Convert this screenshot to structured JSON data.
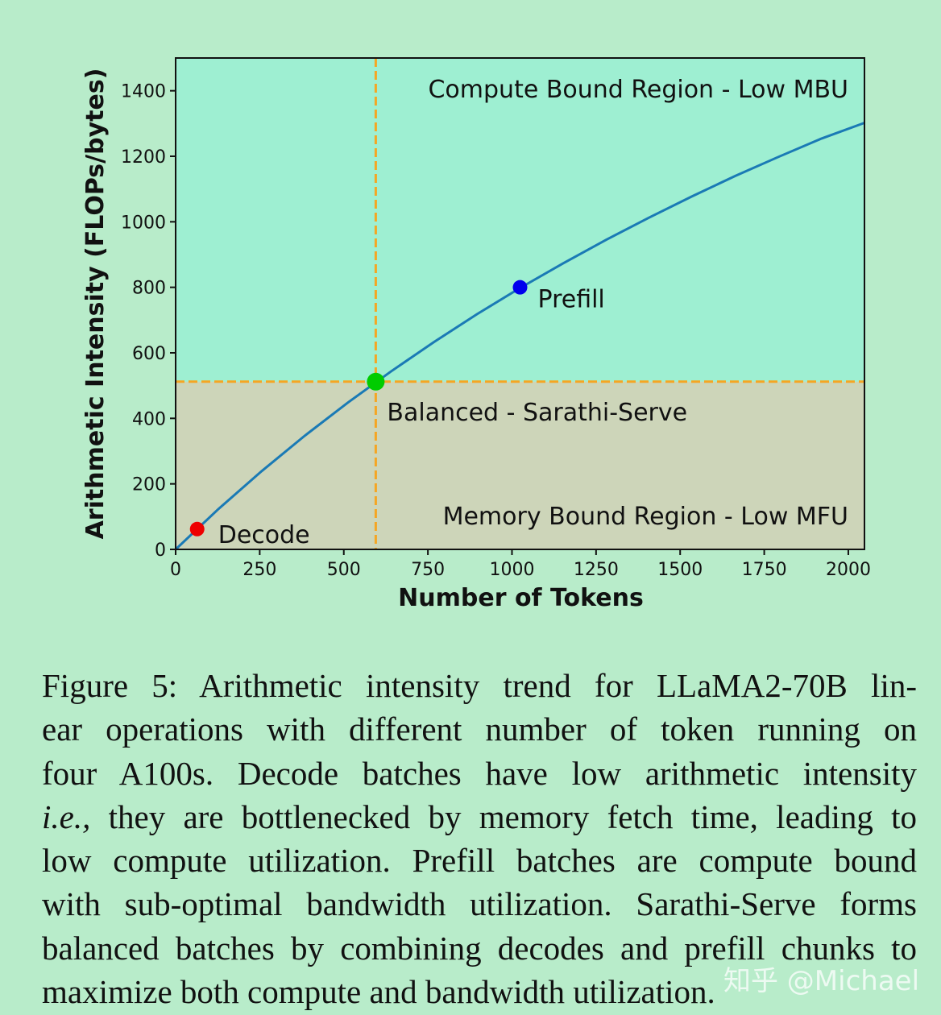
{
  "chart_data": {
    "type": "line",
    "xlabel": "Number of Tokens",
    "ylabel": "Arithmetic Intensity (FLOPs/bytes)",
    "xlim": [
      0,
      2048
    ],
    "ylim": [
      0,
      1500
    ],
    "xticks": [
      0,
      250,
      500,
      750,
      1000,
      1250,
      1500,
      1750,
      2000
    ],
    "yticks": [
      0,
      200,
      400,
      600,
      800,
      1000,
      1200,
      1400
    ],
    "x": [
      0,
      128,
      256,
      384,
      512,
      640,
      768,
      896,
      1024,
      1152,
      1280,
      1408,
      1536,
      1664,
      1792,
      1920,
      2048
    ],
    "series": [
      {
        "color": "#1a7ab5",
        "values": [
          0,
          124,
          239,
          347,
          448,
          543,
          633,
          718,
          798,
          873,
          945,
          1013,
          1078,
          1140,
          1198,
          1254,
          1302
        ]
      }
    ],
    "points": [
      {
        "label": "Decode",
        "x": 64,
        "y": 62,
        "color": "#ee0000"
      },
      {
        "label": "Balanced - Sarathi-Serve",
        "x": 595,
        "y": 512,
        "color": "#00cc00"
      },
      {
        "label": "Prefill",
        "x": 1024,
        "y": 800,
        "color": "#0000ee"
      }
    ],
    "reference_lines": {
      "x": 595,
      "y": 512,
      "color": "#f5a623"
    },
    "regions": [
      {
        "label": "Compute Bound Region - Low MBU",
        "color": "#9eefd2"
      },
      {
        "label": "Memory Bound Region - Low MFU",
        "color": "#cdd5b9"
      }
    ]
  },
  "caption": {
    "lines": [
      "Figure 5: Arithmetic intensity trend for LLaMA2-70B lin-",
      "ear operations with different number of token running on",
      "four A100s. Decode batches have low arithmetic intensity",
      {
        "italic": "i.e.,",
        "text": "they are bottlenecked by memory fetch time, leading to"
      },
      "low compute utilization. Prefill batches are compute bound",
      "with sub-optimal bandwidth utilization. Sarathi-Serve forms",
      "balanced batches by combining decodes and prefill chunks to",
      "maximize both compute and bandwidth utilization."
    ]
  },
  "watermark": "知乎 @Michael"
}
